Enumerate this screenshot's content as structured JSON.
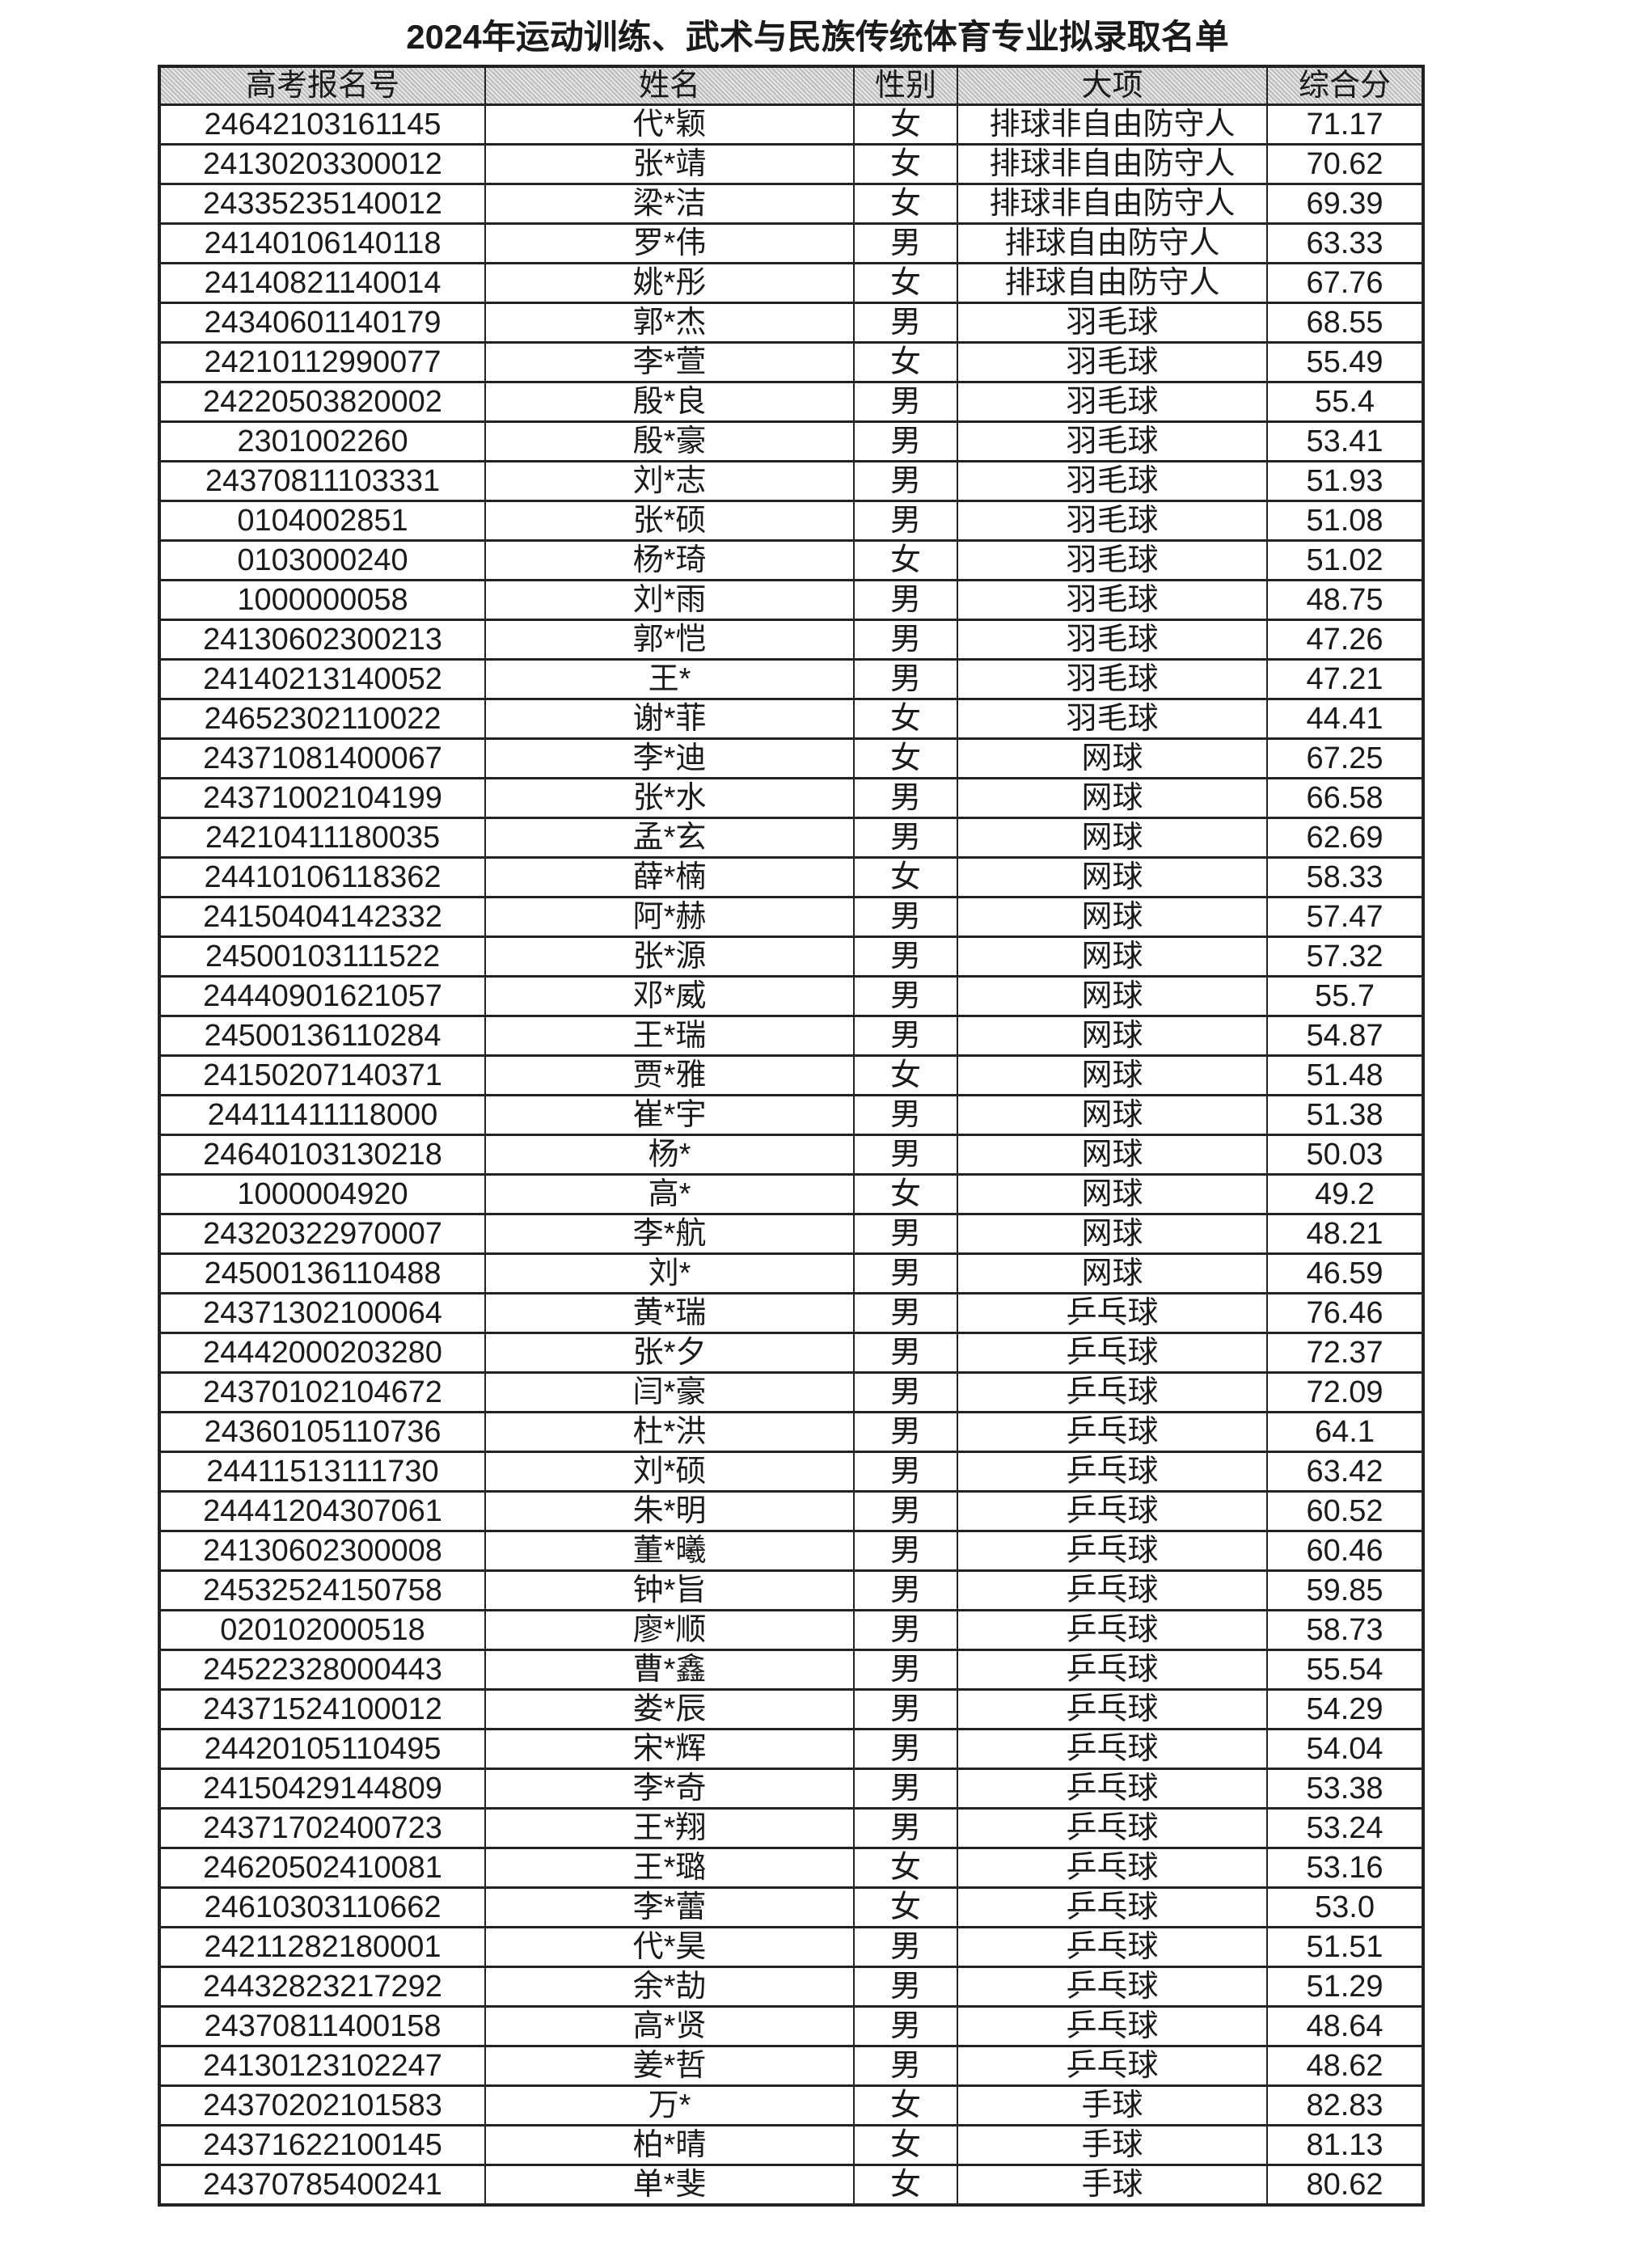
{
  "title": "2024年运动训练、武术与民族传统体育专业拟录取名单",
  "columns": [
    "高考报名号",
    "姓名",
    "性别",
    "大项",
    "综合分"
  ],
  "rows": [
    [
      "24642103161145",
      "代*颖",
      "女",
      "排球非自由防守人",
      "71.17"
    ],
    [
      "24130203300012",
      "张*靖",
      "女",
      "排球非自由防守人",
      "70.62"
    ],
    [
      "24335235140012",
      "梁*洁",
      "女",
      "排球非自由防守人",
      "69.39"
    ],
    [
      "24140106140118",
      "罗*伟",
      "男",
      "排球自由防守人",
      "63.33"
    ],
    [
      "24140821140014",
      "姚*彤",
      "女",
      "排球自由防守人",
      "67.76"
    ],
    [
      "24340601140179",
      "郭*杰",
      "男",
      "羽毛球",
      "68.55"
    ],
    [
      "24210112990077",
      "李*萱",
      "女",
      "羽毛球",
      "55.49"
    ],
    [
      "24220503820002",
      "殷*良",
      "男",
      "羽毛球",
      "55.4"
    ],
    [
      "2301002260",
      "殷*豪",
      "男",
      "羽毛球",
      "53.41"
    ],
    [
      "24370811103331",
      "刘*志",
      "男",
      "羽毛球",
      "51.93"
    ],
    [
      "0104002851",
      "张*硕",
      "男",
      "羽毛球",
      "51.08"
    ],
    [
      "0103000240",
      "杨*琦",
      "女",
      "羽毛球",
      "51.02"
    ],
    [
      "1000000058",
      "刘*雨",
      "男",
      "羽毛球",
      "48.75"
    ],
    [
      "24130602300213",
      "郭*恺",
      "男",
      "羽毛球",
      "47.26"
    ],
    [
      "24140213140052",
      "王*",
      "男",
      "羽毛球",
      "47.21"
    ],
    [
      "24652302110022",
      "谢*菲",
      "女",
      "羽毛球",
      "44.41"
    ],
    [
      "24371081400067",
      "李*迪",
      "女",
      "网球",
      "67.25"
    ],
    [
      "24371002104199",
      "张*水",
      "男",
      "网球",
      "66.58"
    ],
    [
      "24210411180035",
      "孟*玄",
      "男",
      "网球",
      "62.69"
    ],
    [
      "24410106118362",
      "薛*楠",
      "女",
      "网球",
      "58.33"
    ],
    [
      "24150404142332",
      "阿*赫",
      "男",
      "网球",
      "57.47"
    ],
    [
      "24500103111522",
      "张*源",
      "男",
      "网球",
      "57.32"
    ],
    [
      "24440901621057",
      "邓*威",
      "男",
      "网球",
      "55.7"
    ],
    [
      "24500136110284",
      "王*瑞",
      "男",
      "网球",
      "54.87"
    ],
    [
      "24150207140371",
      "贾*雅",
      "女",
      "网球",
      "51.48"
    ],
    [
      "24411411118000",
      "崔*宇",
      "男",
      "网球",
      "51.38"
    ],
    [
      "24640103130218",
      "杨*",
      "男",
      "网球",
      "50.03"
    ],
    [
      "1000004920",
      "高*",
      "女",
      "网球",
      "49.2"
    ],
    [
      "24320322970007",
      "李*航",
      "男",
      "网球",
      "48.21"
    ],
    [
      "24500136110488",
      "刘*",
      "男",
      "网球",
      "46.59"
    ],
    [
      "24371302100064",
      "黄*瑞",
      "男",
      "乒乓球",
      "76.46"
    ],
    [
      "24442000203280",
      "张*夕",
      "男",
      "乒乓球",
      "72.37"
    ],
    [
      "24370102104672",
      "闫*豪",
      "男",
      "乒乓球",
      "72.09"
    ],
    [
      "24360105110736",
      "杜*洪",
      "男",
      "乒乓球",
      "64.1"
    ],
    [
      "24411513111730",
      "刘*硕",
      "男",
      "乒乓球",
      "63.42"
    ],
    [
      "24441204307061",
      "朱*明",
      "男",
      "乒乓球",
      "60.52"
    ],
    [
      "24130602300008",
      "董*曦",
      "男",
      "乒乓球",
      "60.46"
    ],
    [
      "24532524150758",
      "钟*旨",
      "男",
      "乒乓球",
      "59.85"
    ],
    [
      "020102000518",
      "廖*顺",
      "男",
      "乒乓球",
      "58.73"
    ],
    [
      "24522328000443",
      "曹*鑫",
      "男",
      "乒乓球",
      "55.54"
    ],
    [
      "24371524100012",
      "娄*辰",
      "男",
      "乒乓球",
      "54.29"
    ],
    [
      "24420105110495",
      "宋*辉",
      "男",
      "乒乓球",
      "54.04"
    ],
    [
      "24150429144809",
      "李*奇",
      "男",
      "乒乓球",
      "53.38"
    ],
    [
      "24371702400723",
      "王*翔",
      "男",
      "乒乓球",
      "53.24"
    ],
    [
      "24620502410081",
      "王*璐",
      "女",
      "乒乓球",
      "53.16"
    ],
    [
      "24610303110662",
      "李*蕾",
      "女",
      "乒乓球",
      "53.0"
    ],
    [
      "24211282180001",
      "代*昊",
      "男",
      "乒乓球",
      "51.51"
    ],
    [
      "24432823217292",
      "余*劼",
      "男",
      "乒乓球",
      "51.29"
    ],
    [
      "24370811400158",
      "高*贤",
      "男",
      "乒乓球",
      "48.64"
    ],
    [
      "24130123102247",
      "姜*哲",
      "男",
      "乒乓球",
      "48.62"
    ],
    [
      "24370202101583",
      "万*",
      "女",
      "手球",
      "82.83"
    ],
    [
      "24371622100145",
      "柏*晴",
      "女",
      "手球",
      "81.13"
    ],
    [
      "24370785400241",
      "单*斐",
      "女",
      "手球",
      "80.62"
    ]
  ]
}
